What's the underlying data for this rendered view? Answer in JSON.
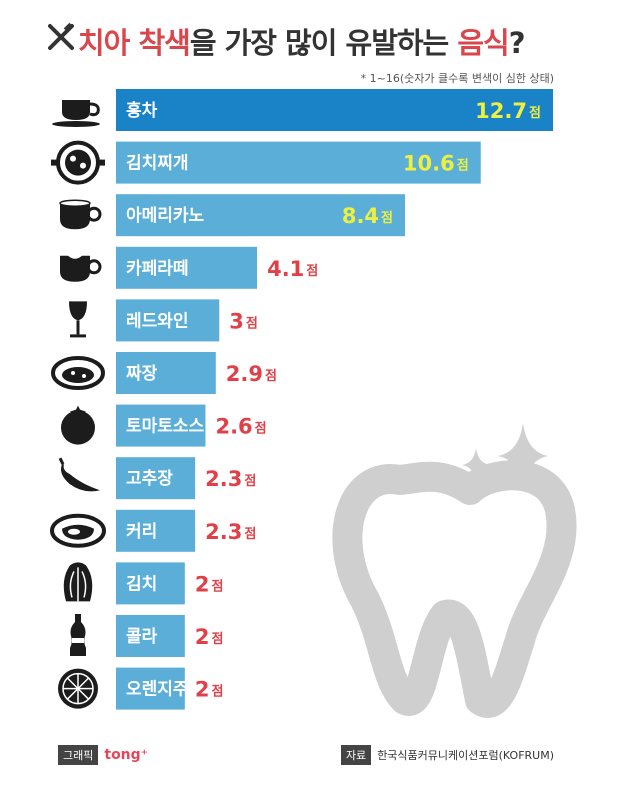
{
  "title": {
    "part1": "치아 착색",
    "part2": "을 가장 많이 유발하는 ",
    "part3": "음식",
    "part4": "?"
  },
  "note": "* 1~16(숫자가 클수록 변색이 심한 상태)",
  "footer": {
    "graphic_label": "그래픽",
    "brand": "tong⁺",
    "source_label": "자료",
    "source": "한국식품커뮤니케이션포럼(KOFRUM)"
  },
  "colors": {
    "bar_top": "#1a82c6",
    "bar": "#5aaed8",
    "value_yellow": "#eef040",
    "value_red": "#e04048",
    "icon": "#1c1c1c",
    "tooth": "#cfcfcf"
  },
  "chart_data": {
    "type": "bar",
    "orientation": "horizontal",
    "unit": "점",
    "categories": [
      "홍차",
      "김치찌개",
      "아메리카노",
      "카페라떼",
      "레드와인",
      "짜장",
      "토마토소스",
      "고추장",
      "커리",
      "김치",
      "콜라",
      "오렌지주스"
    ],
    "values": [
      12.7,
      10.6,
      8.4,
      4.1,
      3,
      2.9,
      2.6,
      2.3,
      2.3,
      2,
      2,
      2
    ],
    "value_labels": [
      "12.7",
      "10.6",
      "8.4",
      "4.1",
      "3",
      "2.9",
      "2.6",
      "2.3",
      "2.3",
      "2",
      "2",
      "2"
    ],
    "icons": [
      "tea-cup-icon",
      "stew-pot-icon",
      "coffee-cup-icon",
      "latte-cup-icon",
      "wine-glass-icon",
      "noodle-bowl-icon",
      "tomato-icon",
      "chili-pepper-icon",
      "curry-bowl-icon",
      "cabbage-icon",
      "cola-bottle-icon",
      "orange-slice-icon"
    ],
    "xlim": [
      0,
      16
    ],
    "grid": false,
    "legend": "none"
  }
}
